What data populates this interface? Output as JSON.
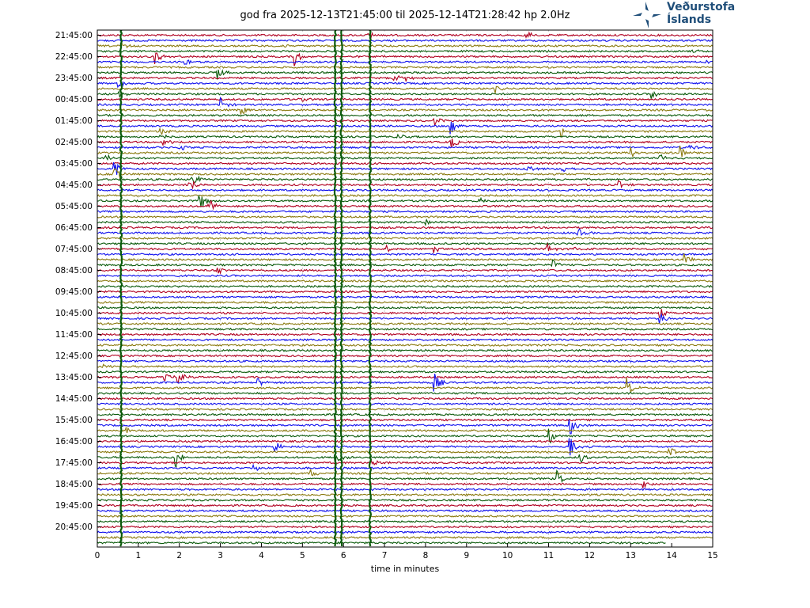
{
  "title": "god fra 2025-12-13T21:45:00 til 2025-12-14T21:28:42 hp 2.0Hz",
  "logo": {
    "line1": "Veðurstofa",
    "line2": "Íslands",
    "icon": "star-compass-icon"
  },
  "colors": {
    "red": "#b00020",
    "blue": "#1010ee",
    "olive": "#8b7a10",
    "green": "#0a5a0a"
  },
  "chart_data": {
    "type": "line",
    "title": "god fra 2025-12-13T21:45:00 til 2025-12-14T21:28:42 hp 2.0Hz",
    "xlabel": "time in minutes",
    "ylabel": "",
    "xlim": [
      0,
      15
    ],
    "x_ticks": [
      "0",
      "1",
      "2",
      "3",
      "4",
      "5",
      "6",
      "7",
      "8",
      "9",
      "10",
      "11",
      "12",
      "13",
      "14",
      "15"
    ],
    "y_tick_labels": [
      "21:45:00",
      "22:45:00",
      "23:45:00",
      "00:45:00",
      "01:45:00",
      "02:45:00",
      "03:45:00",
      "04:45:00",
      "05:45:00",
      "06:45:00",
      "07:45:00",
      "08:45:00",
      "09:45:00",
      "10:45:00",
      "11:45:00",
      "12:45:00",
      "13:45:00",
      "14:45:00",
      "15:45:00",
      "16:45:00",
      "17:45:00",
      "18:45:00",
      "19:45:00",
      "20:45:00"
    ],
    "trace_count": 96,
    "trace_minutes": 15,
    "color_cycle": [
      "red",
      "blue",
      "olive",
      "green"
    ],
    "vertical_events": [
      {
        "minute": 5.8,
        "color": "green"
      },
      {
        "minute": 5.95,
        "color": "green"
      },
      {
        "minute": 0.58,
        "color": "green"
      },
      {
        "minute": 6.65,
        "color": "green"
      }
    ],
    "events": [
      {
        "trace": 0,
        "minute": 6.6,
        "amp": 5
      },
      {
        "trace": 0,
        "minute": 10.45,
        "amp": 6
      },
      {
        "trace": 2,
        "minute": 0.6,
        "amp": 4
      },
      {
        "trace": 2,
        "minute": 4.4,
        "amp": 5
      },
      {
        "trace": 3,
        "minute": 14.5,
        "amp": 4
      },
      {
        "trace": 4,
        "minute": 1.4,
        "amp": 9
      },
      {
        "trace": 4,
        "minute": 4.8,
        "amp": 12
      },
      {
        "trace": 5,
        "minute": 2.1,
        "amp": 6
      },
      {
        "trace": 5,
        "minute": 14.8,
        "amp": 4
      },
      {
        "trace": 7,
        "minute": 2.9,
        "amp": 12
      },
      {
        "trace": 8,
        "minute": 7.2,
        "amp": 6
      },
      {
        "trace": 8,
        "minute": 7.5,
        "amp": 5
      },
      {
        "trace": 9,
        "minute": 0.5,
        "amp": 6
      },
      {
        "trace": 10,
        "minute": 9.7,
        "amp": 5
      },
      {
        "trace": 11,
        "minute": 0.5,
        "amp": 6
      },
      {
        "trace": 11,
        "minute": 13.5,
        "amp": 6
      },
      {
        "trace": 12,
        "minute": 4.9,
        "amp": 6
      },
      {
        "trace": 13,
        "minute": 3.0,
        "amp": 10
      },
      {
        "trace": 14,
        "minute": 3.5,
        "amp": 8
      },
      {
        "trace": 16,
        "minute": 8.2,
        "amp": 8
      },
      {
        "trace": 17,
        "minute": 8.6,
        "amp": 15
      },
      {
        "trace": 18,
        "minute": 1.5,
        "amp": 8
      },
      {
        "trace": 18,
        "minute": 11.3,
        "amp": 8
      },
      {
        "trace": 19,
        "minute": 7.3,
        "amp": 5
      },
      {
        "trace": 19,
        "minute": 1.5,
        "amp": 7
      },
      {
        "trace": 20,
        "minute": 1.6,
        "amp": 7
      },
      {
        "trace": 20,
        "minute": 8.6,
        "amp": 10
      },
      {
        "trace": 21,
        "minute": 2.0,
        "amp": 7
      },
      {
        "trace": 21,
        "minute": 14.4,
        "amp": 6
      },
      {
        "trace": 22,
        "minute": 13.0,
        "amp": 8
      },
      {
        "trace": 22,
        "minute": 14.2,
        "amp": 10
      },
      {
        "trace": 23,
        "minute": 0.2,
        "amp": 5
      },
      {
        "trace": 23,
        "minute": 13.7,
        "amp": 8
      },
      {
        "trace": 25,
        "minute": 0.4,
        "amp": 14
      },
      {
        "trace": 25,
        "minute": 10.45,
        "amp": 6
      },
      {
        "trace": 25,
        "minute": 11.3,
        "amp": 8
      },
      {
        "trace": 26,
        "minute": 0.4,
        "amp": 16
      },
      {
        "trace": 27,
        "minute": 2.3,
        "amp": 12
      },
      {
        "trace": 28,
        "minute": 2.2,
        "amp": 18
      },
      {
        "trace": 28,
        "minute": 12.7,
        "amp": 6
      },
      {
        "trace": 31,
        "minute": 2.45,
        "amp": 18
      },
      {
        "trace": 31,
        "minute": 9.3,
        "amp": 5
      },
      {
        "trace": 32,
        "minute": 2.7,
        "amp": 12
      },
      {
        "trace": 35,
        "minute": 8.0,
        "amp": 6
      },
      {
        "trace": 37,
        "minute": 11.7,
        "amp": 10
      },
      {
        "trace": 40,
        "minute": 7.05,
        "amp": 5
      },
      {
        "trace": 40,
        "minute": 8.2,
        "amp": 6
      },
      {
        "trace": 40,
        "minute": 10.95,
        "amp": 8
      },
      {
        "trace": 40,
        "minute": 11.6,
        "amp": 5
      },
      {
        "trace": 42,
        "minute": 14.3,
        "amp": 8
      },
      {
        "trace": 43,
        "minute": 11.05,
        "amp": 10
      },
      {
        "trace": 44,
        "minute": 2.9,
        "amp": 7
      },
      {
        "trace": 52,
        "minute": 13.7,
        "amp": 8
      },
      {
        "trace": 53,
        "minute": 13.7,
        "amp": 10
      },
      {
        "trace": 62,
        "minute": 0.1,
        "amp": 6
      },
      {
        "trace": 64,
        "minute": 1.6,
        "amp": 10
      },
      {
        "trace": 64,
        "minute": 1.95,
        "amp": 10
      },
      {
        "trace": 65,
        "minute": 3.9,
        "amp": 7
      },
      {
        "trace": 65,
        "minute": 8.2,
        "amp": 14
      },
      {
        "trace": 66,
        "minute": 12.9,
        "amp": 14
      },
      {
        "trace": 73,
        "minute": 11.5,
        "amp": 16
      },
      {
        "trace": 74,
        "minute": 0.7,
        "amp": 6
      },
      {
        "trace": 75,
        "minute": 11.0,
        "amp": 14
      },
      {
        "trace": 77,
        "minute": 4.3,
        "amp": 10
      },
      {
        "trace": 77,
        "minute": 11.5,
        "amp": 18
      },
      {
        "trace": 78,
        "minute": 13.9,
        "amp": 10
      },
      {
        "trace": 79,
        "minute": 1.9,
        "amp": 20
      },
      {
        "trace": 79,
        "minute": 5.8,
        "amp": 10
      },
      {
        "trace": 79,
        "minute": 11.75,
        "amp": 8
      },
      {
        "trace": 80,
        "minute": 6.65,
        "amp": 8
      },
      {
        "trace": 81,
        "minute": 3.8,
        "amp": 8
      },
      {
        "trace": 82,
        "minute": 5.2,
        "amp": 6
      },
      {
        "trace": 83,
        "minute": 11.2,
        "amp": 10
      },
      {
        "trace": 84,
        "minute": 13.25,
        "amp": 8
      }
    ]
  }
}
